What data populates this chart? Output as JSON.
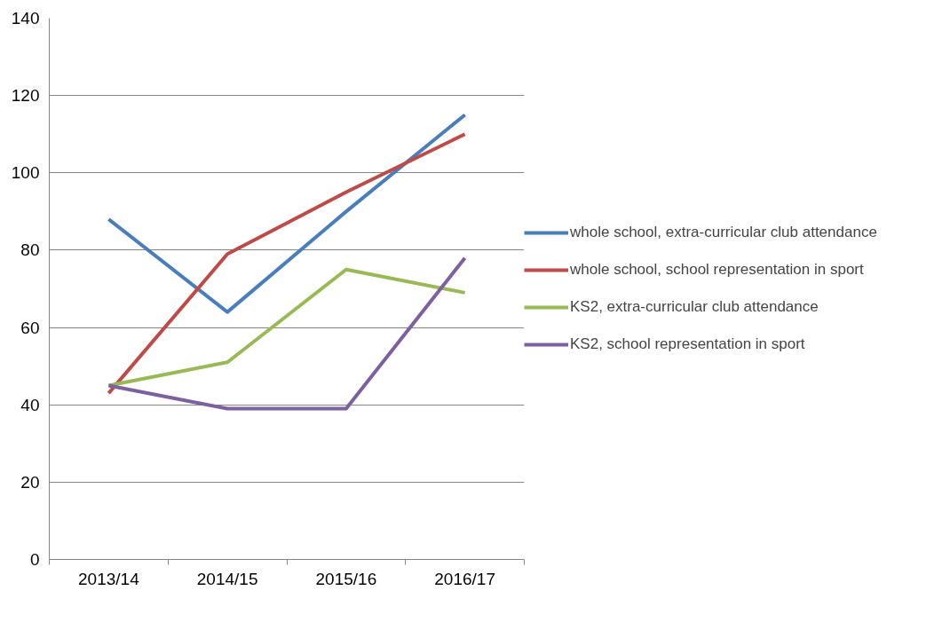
{
  "chart_data": {
    "type": "line",
    "categories": [
      "2013/14",
      "2014/15",
      "2015/16",
      "2016/17"
    ],
    "series": [
      {
        "name": "whole school, extra-curricular club attendance",
        "color": "#4a7ebb",
        "values": [
          88,
          64,
          90,
          115
        ]
      },
      {
        "name": "whole school, school representation in sport",
        "color": "#be4b48",
        "values": [
          43,
          79,
          95,
          110
        ]
      },
      {
        "name": "KS2, extra-curricular club attendance",
        "color": "#98b954",
        "values": [
          45,
          51,
          75,
          69
        ]
      },
      {
        "name": "KS2, school representation in sport",
        "color": "#7d60a0",
        "values": [
          45,
          39,
          39,
          78
        ]
      }
    ],
    "ylim": [
      0,
      140
    ],
    "yticks": [
      0,
      20,
      40,
      60,
      80,
      100,
      120,
      140
    ],
    "grid": "y",
    "legend": "right",
    "marker": "none",
    "line_style": "solid"
  }
}
